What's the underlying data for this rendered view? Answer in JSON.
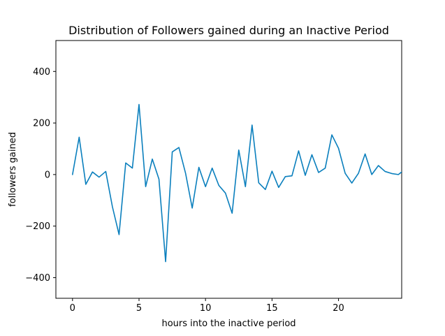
{
  "chart_data": {
    "type": "line",
    "title": "Distribution of Followers gained during an Inactive Period",
    "xlabel": "hours into the inactive period",
    "ylabel": "followers gained",
    "xlim": [
      -1.25,
      24.75
    ],
    "ylim": [
      -480,
      520
    ],
    "xticks": [
      0,
      5,
      10,
      15,
      20
    ],
    "yticks": [
      -400,
      -200,
      0,
      200,
      400
    ],
    "xtick_labels": [
      "0",
      "5",
      "10",
      "15",
      "20"
    ],
    "ytick_labels": [
      "−400",
      "−200",
      "0",
      "200",
      "400"
    ],
    "grid": false,
    "series": [
      {
        "color": "#0a7fbd",
        "x": [
          0,
          0.5,
          1,
          1.5,
          2,
          2.5,
          3,
          3.5,
          4,
          4.5,
          5,
          5.5,
          6,
          6.5,
          7,
          7.5,
          8,
          8.5,
          9,
          9.5,
          10,
          10.5,
          11,
          11.5,
          12,
          12.5,
          13,
          13.5,
          14,
          14.5,
          15,
          15.5,
          16,
          16.5,
          17,
          17.5,
          18,
          18.5,
          19,
          19.5,
          20,
          20.5,
          21,
          21.5,
          22,
          22.5,
          23,
          23.5,
          24,
          24.5,
          25
        ],
        "y": [
          0,
          145,
          -38,
          10,
          -10,
          12,
          -125,
          -233,
          45,
          25,
          272,
          -47,
          60,
          -18,
          -338,
          88,
          105,
          5,
          -130,
          28,
          -47,
          25,
          -42,
          -72,
          -150,
          95,
          -47,
          192,
          -32,
          -58,
          13,
          -50,
          -8,
          -5,
          92,
          -3,
          77,
          8,
          25,
          154,
          102,
          5,
          -33,
          5,
          80,
          0,
          35,
          12,
          4,
          0,
          20
        ]
      }
    ]
  }
}
